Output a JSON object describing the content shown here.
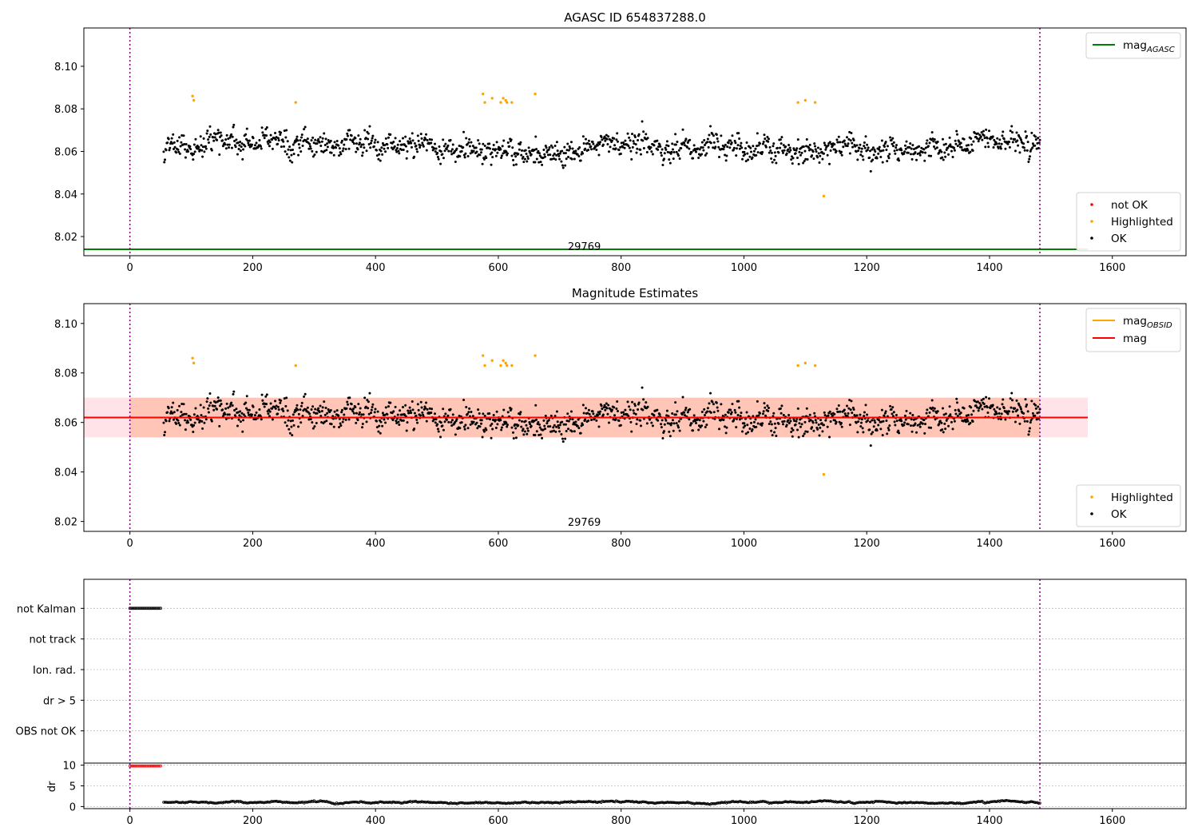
{
  "chart_data": [
    {
      "type": "scatter",
      "title": "AGASC ID 654837288.0",
      "annotation": "29769",
      "xlim": [
        -75,
        1720
      ],
      "ylim": [
        8.011,
        8.118
      ],
      "xticks": [
        0,
        200,
        400,
        600,
        800,
        1000,
        1200,
        1400,
        1600
      ],
      "yticks": [
        8.02,
        8.04,
        8.06,
        8.08,
        8.1
      ],
      "lines": [
        {
          "name": "mag_AGASC",
          "legend_main": "mag",
          "legend_sub": "AGASC",
          "y": 8.014,
          "x": [
            -75,
            1560
          ],
          "color": "#008000"
        }
      ],
      "vlines": [
        0,
        1482
      ],
      "legend_lines_position": "top-right",
      "legend_points_position": "bottom-right",
      "point_categories": [
        {
          "name": "not OK",
          "color": "#ff0000"
        },
        {
          "name": "Highlighted",
          "color": "#ffa500"
        },
        {
          "name": "OK",
          "color": "#000000"
        }
      ],
      "highlighted_points": [
        [
          102,
          8.086
        ],
        [
          104,
          8.084
        ],
        [
          270,
          8.083
        ],
        [
          575,
          8.087
        ],
        [
          578,
          8.083
        ],
        [
          590,
          8.085
        ],
        [
          604,
          8.083
        ],
        [
          608,
          8.085
        ],
        [
          612,
          8.084
        ],
        [
          614,
          8.083
        ],
        [
          622,
          8.083
        ],
        [
          660,
          8.087
        ],
        [
          1088,
          8.083
        ],
        [
          1100,
          8.084
        ],
        [
          1116,
          8.083
        ],
        [
          1130,
          8.039
        ]
      ],
      "ok_series": {
        "x_start": 55,
        "x_end": 1482,
        "n": 1400,
        "center": 8.062,
        "spread": 0.012,
        "min": 8.042,
        "max": 8.082
      }
    },
    {
      "type": "scatter",
      "title": "Magnitude Estimates",
      "annotation": "29769",
      "xlim": [
        -75,
        1720
      ],
      "ylim": [
        8.016,
        8.108
      ],
      "xticks": [
        0,
        200,
        400,
        600,
        800,
        1000,
        1200,
        1400,
        1600
      ],
      "yticks": [
        8.02,
        8.04,
        8.06,
        8.08,
        8.1
      ],
      "lines": [
        {
          "name": "mag_OBSID",
          "legend_main": "mag",
          "legend_sub": "OBSID",
          "y": 8.062,
          "x": [
            0,
            1482
          ],
          "color": "#ffa500"
        },
        {
          "name": "mag",
          "legend_main": "mag",
          "legend_sub": "",
          "y": 8.062,
          "x": [
            -75,
            1560
          ],
          "color": "#ff0000"
        }
      ],
      "bands": [
        {
          "x": [
            -75,
            1560
          ],
          "y": [
            8.054,
            8.07
          ],
          "color": "#ffc0cb"
        },
        {
          "x": [
            0,
            1482
          ],
          "y": [
            8.054,
            8.07
          ],
          "color": "#ffa07a"
        }
      ],
      "vlines": [
        0,
        1482
      ],
      "legend_lines_position": "top-right",
      "legend_points_position": "bottom-right",
      "point_categories": [
        {
          "name": "Highlighted",
          "color": "#ffa500"
        },
        {
          "name": "OK",
          "color": "#000000"
        }
      ],
      "highlighted_points": [
        [
          102,
          8.086
        ],
        [
          104,
          8.084
        ],
        [
          270,
          8.083
        ],
        [
          575,
          8.087
        ],
        [
          578,
          8.083
        ],
        [
          590,
          8.085
        ],
        [
          604,
          8.083
        ],
        [
          608,
          8.085
        ],
        [
          612,
          8.084
        ],
        [
          614,
          8.083
        ],
        [
          622,
          8.083
        ],
        [
          660,
          8.087
        ],
        [
          1088,
          8.083
        ],
        [
          1100,
          8.084
        ],
        [
          1116,
          8.083
        ],
        [
          1130,
          8.039
        ]
      ],
      "ok_series": {
        "x_start": 55,
        "x_end": 1482,
        "n": 1400,
        "center": 8.062,
        "spread": 0.012,
        "min": 8.042,
        "max": 8.082
      }
    },
    {
      "type": "scatter",
      "title": "",
      "xlim": [
        -75,
        1720
      ],
      "categories": [
        "not Kalman",
        "not track",
        "Ion. rad.",
        "dr > 5",
        "OBS not OK"
      ],
      "flags": {
        "not Kalman": [
          0,
          52
        ]
      },
      "vlines": [
        0,
        1482
      ]
    },
    {
      "type": "scatter",
      "title": "",
      "xlim": [
        -75,
        1720
      ],
      "xticks": [
        0,
        200,
        400,
        600,
        800,
        1000,
        1200,
        1400,
        1600
      ],
      "ylabel": "dr",
      "ylim": [
        -0.5,
        10.5
      ],
      "yticks": [
        0,
        5,
        10
      ],
      "high_points": {
        "x": [
          0,
          52
        ],
        "y": 10,
        "color": "#ff0000"
      },
      "dr_series": {
        "x_start": 55,
        "x_end": 1482,
        "n": 700,
        "center": 1.0,
        "spread": 0.6,
        "min": 0.1,
        "max": 2.2
      },
      "vlines": [
        0,
        1482
      ]
    }
  ]
}
